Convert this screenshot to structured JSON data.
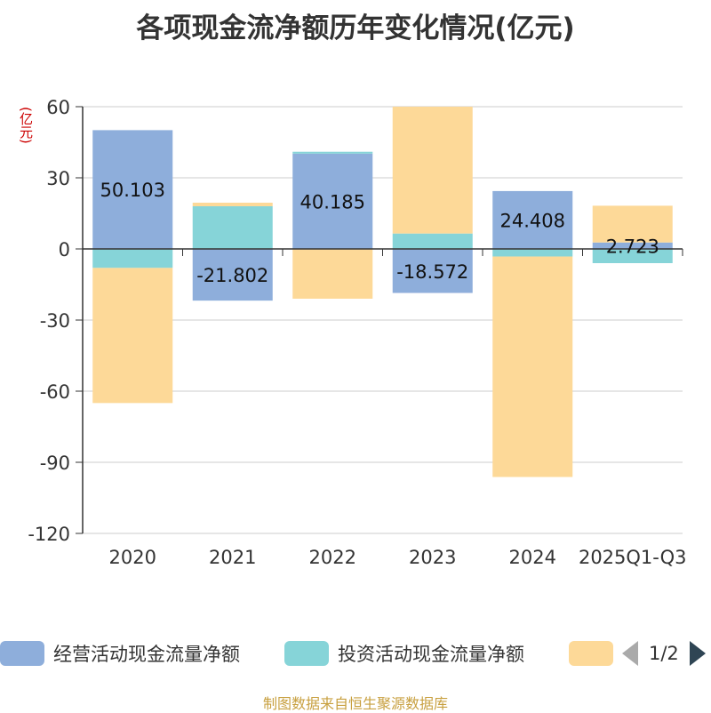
{
  "chart_data": {
    "type": "bar",
    "stacked": true,
    "title": "各项现金流净额历年变化情况(亿元)",
    "ylabel": "(亿元)",
    "ylim": [
      -120,
      60
    ],
    "yticks": [
      60,
      30,
      0,
      -30,
      -60,
      -90,
      -120
    ],
    "categories": [
      "2020",
      "2021",
      "2022",
      "2023",
      "2024",
      "2025Q1-Q3"
    ],
    "series": [
      {
        "name": "经营活动现金流量净额",
        "color": "#8eaedb",
        "values": [
          50.103,
          -21.802,
          40.185,
          -18.572,
          24.408,
          2.723
        ]
      },
      {
        "name": "投资活动现金流量净额",
        "color": "#86d4d8",
        "values": [
          -8.0,
          18.0,
          0.8,
          6.5,
          -3.2,
          -6.0
        ]
      },
      {
        "name": "",
        "color": "#fdd998",
        "values": [
          -57.0,
          1.5,
          -21.0,
          53.5,
          -93.0,
          15.5
        ]
      }
    ],
    "data_labels": [
      {
        "text": "50.103",
        "category_index": 0
      },
      {
        "text": "-21.802",
        "category_index": 1
      },
      {
        "text": "40.185",
        "category_index": 2
      },
      {
        "text": "-18.572",
        "category_index": 3
      },
      {
        "text": "24.408",
        "category_index": 4
      },
      {
        "text": "2.723",
        "category_index": 5
      }
    ]
  },
  "legend": {
    "items": [
      "经营活动现金流量净额",
      "投资活动现金流量净额",
      ""
    ],
    "page": "1/2"
  },
  "source": "制图数据来自恒生聚源数据库"
}
